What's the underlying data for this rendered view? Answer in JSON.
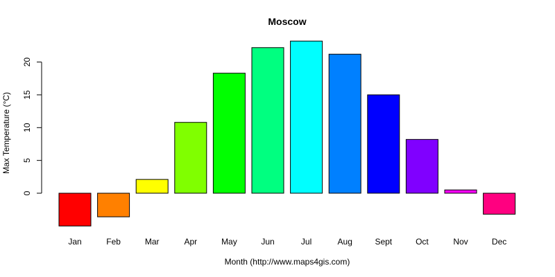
{
  "chart_data": {
    "type": "bar",
    "title": "Moscow",
    "xlabel": "Month (http://www.maps4gis.com)",
    "ylabel": "Max Temperature (°C)",
    "categories": [
      "Jan",
      "Feb",
      "Mar",
      "Apr",
      "May",
      "Jun",
      "Jul",
      "Aug",
      "Sept",
      "Oct",
      "Nov",
      "Dec"
    ],
    "values": [
      -5.0,
      -3.6,
      2.1,
      10.8,
      18.3,
      22.2,
      23.2,
      21.2,
      15.0,
      8.2,
      0.5,
      -3.2
    ],
    "colors": [
      "#FF0000",
      "#FF8000",
      "#FFFF00",
      "#80FF00",
      "#00FF00",
      "#00FF80",
      "#00FFFF",
      "#0080FF",
      "#0000FF",
      "#8000FF",
      "#FF00FF",
      "#FF0080"
    ],
    "yticks": [
      0,
      5,
      10,
      15,
      20
    ],
    "ylim": [
      -5,
      23.2
    ],
    "grid": false,
    "legend": "none"
  }
}
